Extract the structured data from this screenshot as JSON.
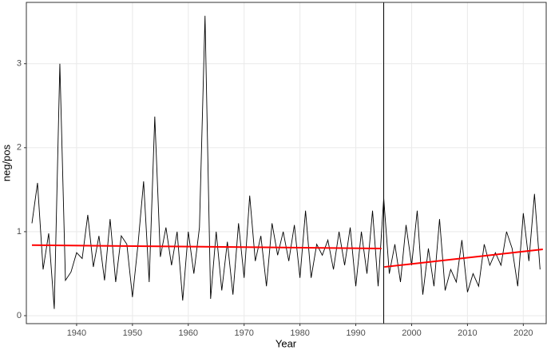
{
  "chart_data": {
    "type": "line",
    "x_label": "Year",
    "y_label": "neg/pos",
    "x": [
      1932,
      1933,
      1934,
      1935,
      1936,
      1937,
      1938,
      1939,
      1940,
      1941,
      1942,
      1943,
      1944,
      1945,
      1946,
      1947,
      1948,
      1949,
      1950,
      1951,
      1952,
      1953,
      1954,
      1955,
      1956,
      1957,
      1958,
      1959,
      1960,
      1961,
      1962,
      1963,
      1964,
      1965,
      1966,
      1967,
      1968,
      1969,
      1970,
      1971,
      1972,
      1973,
      1974,
      1975,
      1976,
      1977,
      1978,
      1979,
      1980,
      1981,
      1982,
      1983,
      1984,
      1985,
      1986,
      1987,
      1988,
      1989,
      1990,
      1991,
      1992,
      1993,
      1994,
      1995,
      1996,
      1997,
      1998,
      1999,
      2000,
      2001,
      2002,
      2003,
      2004,
      2005,
      2006,
      2007,
      2008,
      2009,
      2010,
      2011,
      2012,
      2013,
      2014,
      2015,
      2016,
      2017,
      2018,
      2019,
      2020,
      2021,
      2022,
      2023
    ],
    "series": [
      {
        "color": "#000000",
        "values": [
          1.1,
          1.58,
          0.55,
          0.98,
          0.08,
          3.0,
          0.42,
          0.52,
          0.75,
          0.68,
          1.2,
          0.58,
          0.95,
          0.42,
          1.15,
          0.4,
          0.95,
          0.85,
          0.22,
          0.85,
          1.6,
          0.4,
          2.37,
          0.7,
          1.05,
          0.6,
          1.0,
          0.18,
          1.0,
          0.5,
          1.05,
          3.57,
          0.2,
          1.0,
          0.3,
          0.88,
          0.25,
          1.1,
          0.45,
          1.43,
          0.65,
          0.95,
          0.35,
          1.1,
          0.72,
          1.0,
          0.65,
          1.08,
          0.45,
          1.25,
          0.45,
          0.85,
          0.72,
          0.9,
          0.55,
          1.0,
          0.6,
          1.05,
          0.35,
          1.0,
          0.5,
          1.25,
          0.35,
          1.4,
          0.5,
          0.85,
          0.4,
          1.08,
          0.6,
          1.25,
          0.25,
          0.8,
          0.35,
          1.15,
          0.3,
          0.55,
          0.4,
          0.9,
          0.28,
          0.5,
          0.35,
          0.85,
          0.6,
          0.75,
          0.6,
          1.0,
          0.8,
          0.35,
          1.22,
          0.65,
          1.45,
          0.55
        ]
      }
    ],
    "trend_lines": [
      {
        "color": "#ff0000",
        "x": [
          1932,
          1994.6
        ],
        "values": [
          0.84,
          0.8
        ]
      },
      {
        "color": "#ff0000",
        "x": [
          1995.1,
          2023.5
        ],
        "values": [
          0.58,
          0.79
        ]
      }
    ],
    "vlines": [
      1995
    ],
    "xlim": [
      1931,
      2024.1
    ],
    "ylim": [
      -0.095,
      3.73
    ],
    "xticks": [
      1940,
      1950,
      1960,
      1970,
      1980,
      1990,
      2000,
      2010,
      2020
    ],
    "yticks": [
      0,
      1,
      2,
      3
    ],
    "grid": true
  }
}
